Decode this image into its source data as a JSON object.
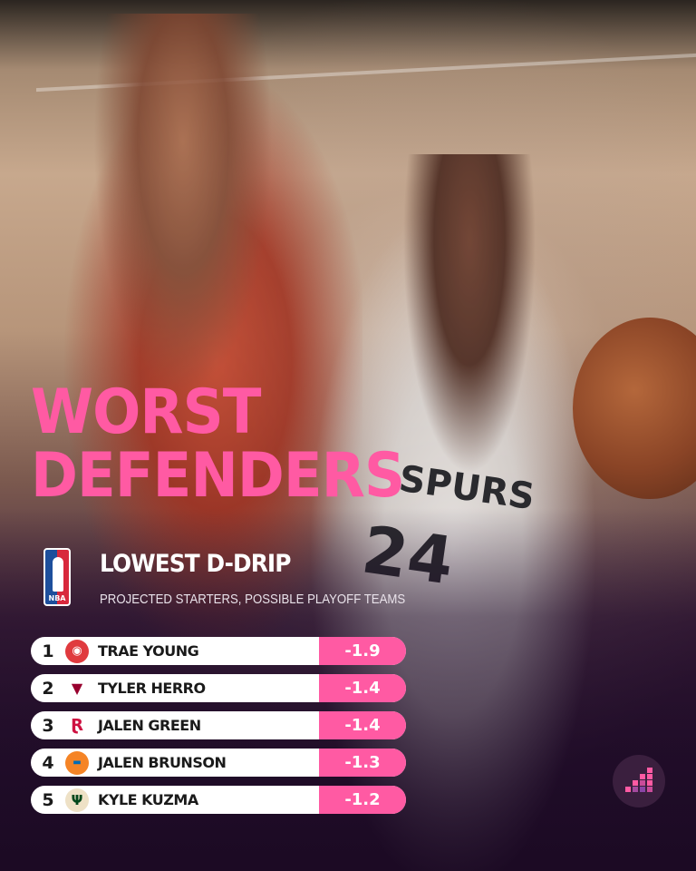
{
  "title": {
    "line1": "WORST",
    "line2": "DEFENDERS"
  },
  "subtitle": "LOWEST D-DRIP",
  "subnote": "PROJECTED STARTERS, POSSIBLE PLAYOFF TEAMS",
  "league_logo": {
    "text": "NBA"
  },
  "jersey": {
    "team": "SPURS",
    "number": "24"
  },
  "rows": [
    {
      "rank": "1",
      "team_icon": "hawks-logo-icon",
      "name": "TRAE YOUNG",
      "value": "-1.9"
    },
    {
      "rank": "2",
      "team_icon": "heat-logo-icon",
      "name": "TYLER HERRO",
      "value": "-1.4"
    },
    {
      "rank": "3",
      "team_icon": "rockets-logo-icon",
      "name": "JALEN GREEN",
      "value": "-1.4"
    },
    {
      "rank": "4",
      "team_icon": "knicks-logo-icon",
      "name": "JALEN BRUNSON",
      "value": "-1.3"
    },
    {
      "rank": "5",
      "team_icon": "bucks-logo-icon",
      "name": "KYLE KUZMA",
      "value": "-1.2"
    }
  ],
  "colors": {
    "accent": "#ff5aa3",
    "row_bg": "#ffffff",
    "dark_bg": "#1c0c24"
  }
}
